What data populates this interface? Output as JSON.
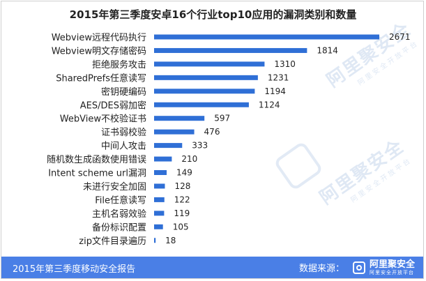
{
  "chart_data": {
    "type": "bar",
    "orientation": "horizontal",
    "title": "2015年第三季度安卓16个行业top10应用的漏洞类别和数量",
    "categories": [
      "Webview远程代码执行",
      "Webview明文存储密码",
      "拒绝服务攻击",
      "SharedPrefs任意读写",
      "密钥硬编码",
      "AES/DES弱加密",
      "WebView不校验证书",
      "证书弱校验",
      "中间人攻击",
      "随机数生成函数使用错误",
      "Intent scheme url漏洞",
      "未进行安全加固",
      "File任意读写",
      "主机名弱效验",
      "备份标识配置",
      "zip文件目录遍历"
    ],
    "values": [
      2671,
      1814,
      1310,
      1231,
      1194,
      1124,
      597,
      476,
      333,
      210,
      149,
      128,
      122,
      119,
      105,
      18
    ],
    "xlim": [
      0,
      2671
    ],
    "bar_color": "#2f6fd6",
    "grid": false,
    "legend": "none"
  },
  "footer": {
    "report_title": "2015年第三季度移动安全报告",
    "source_label": "数据来源：",
    "brand_name": "阿里聚安全",
    "brand_sub": "阿里安全开放平台"
  },
  "watermark": {
    "text": "阿里聚安全",
    "sub": "阿里安全开放平台"
  },
  "colors": {
    "footer_bg": "#4a7fe6",
    "watermark": "#c5d6ec"
  }
}
